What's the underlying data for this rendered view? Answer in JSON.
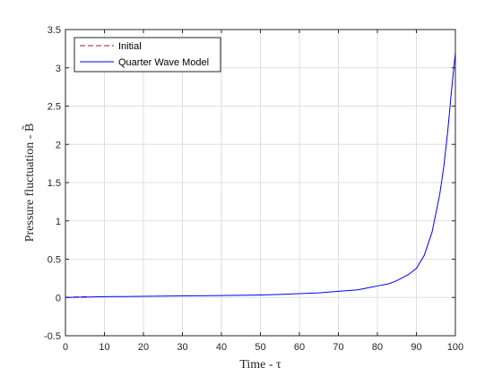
{
  "chart_data": {
    "type": "line",
    "xlabel": "Time - τ",
    "ylabel": "Pressure fluctuation - B̃",
    "xlim": [
      0,
      100
    ],
    "ylim": [
      -0.5,
      3.5
    ],
    "xticks": [
      0,
      10,
      20,
      30,
      40,
      50,
      60,
      70,
      80,
      90,
      100
    ],
    "yticks": [
      -0.5,
      0,
      0.5,
      1,
      1.5,
      2,
      2.5,
      3,
      3.5
    ],
    "xtick_labels": [
      "0",
      "10",
      "20",
      "30",
      "40",
      "50",
      "60",
      "70",
      "80",
      "90",
      "100"
    ],
    "ytick_labels": [
      "-0.5",
      "0",
      "0.5",
      "1",
      "1.5",
      "2",
      "2.5",
      "3",
      "3.5"
    ],
    "grid": true,
    "legend_position": "top-left",
    "series": [
      {
        "name": "Initial",
        "color": "#a2142f",
        "style": "dashed",
        "x": [
          0,
          2,
          4,
          6
        ],
        "y": [
          0.0,
          0.005,
          0.008,
          0.01
        ]
      },
      {
        "name": "Quarter Wave Model",
        "color": "#0000ff",
        "style": "solid",
        "x": [
          0,
          5,
          10,
          15,
          20,
          25,
          30,
          35,
          40,
          45,
          50,
          55,
          60,
          65,
          70,
          75,
          78,
          80,
          83,
          85,
          88,
          90,
          92,
          94,
          96,
          97,
          98,
          99,
          100
        ],
        "y": [
          0.0,
          0.005,
          0.01,
          0.012,
          0.015,
          0.018,
          0.02,
          0.022,
          0.025,
          0.028,
          0.032,
          0.04,
          0.05,
          0.06,
          0.08,
          0.1,
          0.13,
          0.15,
          0.18,
          0.22,
          0.3,
          0.38,
          0.55,
          0.85,
          1.35,
          1.7,
          2.15,
          2.7,
          3.2
        ]
      }
    ]
  }
}
